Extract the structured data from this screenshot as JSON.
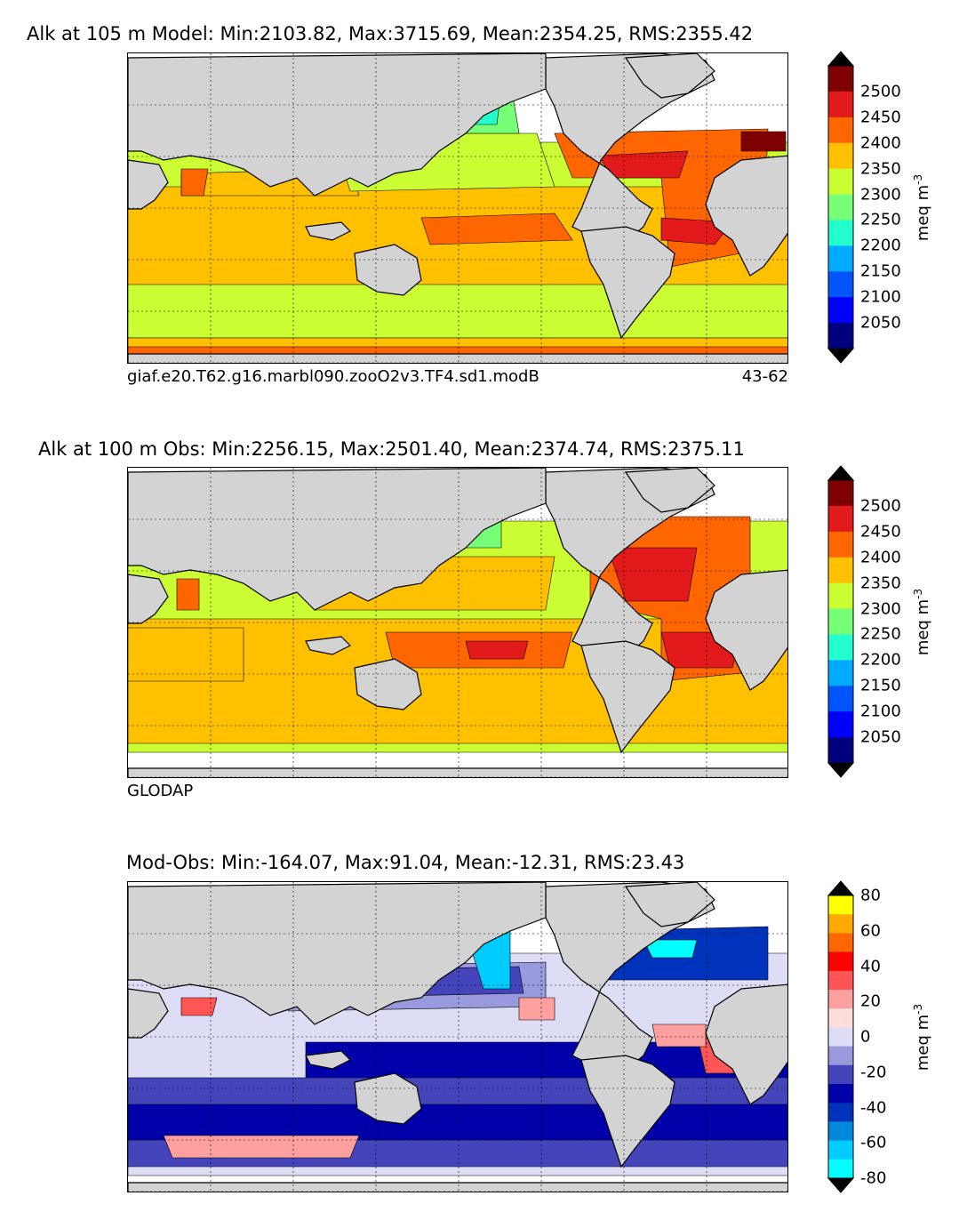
{
  "panels": [
    {
      "title": "Alk at 105 m Model: Min:2103.82, Max:3715.69, Mean:2354.25, RMS:2355.42",
      "caption_left": "giaf.e20.T62.g16.marbl090.zooO2v3.TF4.sd1.modB",
      "caption_right": "43-62",
      "colorbar_unit": "meq m^-3",
      "colorbar_ticks": [
        "2500",
        "2450",
        "2400",
        "2350",
        "2300",
        "2250",
        "2200",
        "2150",
        "2100",
        "2050"
      ],
      "colorbar_colors": [
        "#7f0000",
        "#e31a1c",
        "#ff6600",
        "#ffc000",
        "#ccff33",
        "#77ff77",
        "#22ffcc",
        "#00aaff",
        "#0055ff",
        "#0000ff",
        "#00007f"
      ],
      "field_type": "model"
    },
    {
      "title": "Alk at 100 m Obs: Min:2256.15, Max:2501.40, Mean:2374.74, RMS:2375.11",
      "caption_left": "GLODAP",
      "caption_right": "",
      "colorbar_unit": "meq m^-3",
      "colorbar_ticks": [
        "2500",
        "2450",
        "2400",
        "2350",
        "2300",
        "2250",
        "2200",
        "2150",
        "2100",
        "2050"
      ],
      "colorbar_colors": [
        "#7f0000",
        "#e31a1c",
        "#ff6600",
        "#ffc000",
        "#ccff33",
        "#77ff77",
        "#22ffcc",
        "#00aaff",
        "#0055ff",
        "#0000ff",
        "#00007f"
      ],
      "field_type": "obs"
    },
    {
      "title": "Mod-Obs: Min:-164.07, Max:91.04, Mean:-12.31, RMS:23.43",
      "caption_left": "",
      "caption_right": "",
      "colorbar_unit": "meq m^-3",
      "colorbar_ticks": [
        "80",
        "60",
        "40",
        "20",
        "0",
        "-20",
        "-40",
        "-60",
        "-80"
      ],
      "colorbar_colors": [
        "#ffff00",
        "#ffaa00",
        "#ff6600",
        "#ff0000",
        "#ff5555",
        "#ffa0a0",
        "#ffdddd",
        "#ddddf5",
        "#9999dd",
        "#4444bb",
        "#0000aa",
        "#0033bb",
        "#0088dd",
        "#00ccff",
        "#00ffff"
      ],
      "field_type": "diff"
    }
  ],
  "colors": {
    "land": "#d3d3d3",
    "missing": "#ffffff",
    "grid": "#000000"
  }
}
